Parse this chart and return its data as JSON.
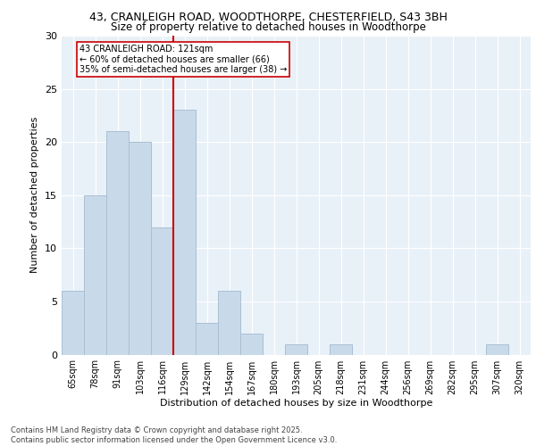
{
  "title1": "43, CRANLEIGH ROAD, WOODTHORPE, CHESTERFIELD, S43 3BH",
  "title2": "Size of property relative to detached houses in Woodthorpe",
  "xlabel": "Distribution of detached houses by size in Woodthorpe",
  "ylabel": "Number of detached properties",
  "categories": [
    "65sqm",
    "78sqm",
    "91sqm",
    "103sqm",
    "116sqm",
    "129sqm",
    "142sqm",
    "154sqm",
    "167sqm",
    "180sqm",
    "193sqm",
    "205sqm",
    "218sqm",
    "231sqm",
    "244sqm",
    "256sqm",
    "269sqm",
    "282sqm",
    "295sqm",
    "307sqm",
    "320sqm"
  ],
  "values": [
    6,
    15,
    21,
    20,
    12,
    23,
    3,
    6,
    2,
    0,
    1,
    0,
    1,
    0,
    0,
    0,
    0,
    0,
    0,
    1,
    0
  ],
  "bar_color": "#c8daea",
  "bar_edge_color": "#aabfd4",
  "vline_x": 4.5,
  "vline_color": "#cc0000",
  "annotation_text": "43 CRANLEIGH ROAD: 121sqm\n← 60% of detached houses are smaller (66)\n35% of semi-detached houses are larger (38) →",
  "annotation_box_color": "#ffffff",
  "annotation_box_edge_color": "#cc0000",
  "ylim": [
    0,
    30
  ],
  "yticks": [
    0,
    5,
    10,
    15,
    20,
    25,
    30
  ],
  "footer_text": "Contains HM Land Registry data © Crown copyright and database right 2025.\nContains public sector information licensed under the Open Government Licence v3.0.",
  "plot_bg_color": "#e8f0f8",
  "fig_bg_color": "#ffffff",
  "title1_fontsize": 9,
  "title2_fontsize": 8.5,
  "xlabel_fontsize": 8,
  "ylabel_fontsize": 8,
  "tick_fontsize": 7,
  "footer_fontsize": 6,
  "annot_fontsize": 7
}
